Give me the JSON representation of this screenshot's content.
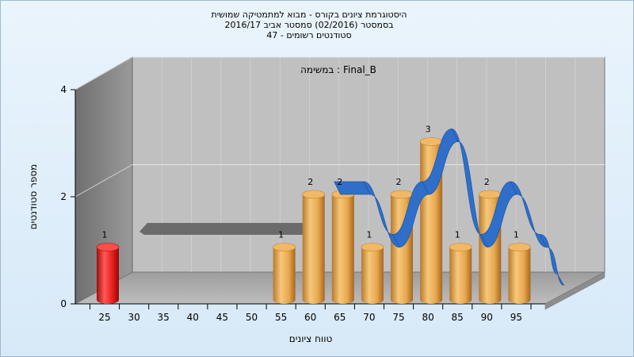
{
  "chart_data": {
    "type": "bar",
    "title_lines": [
      "היסטוגרמת ציונים בקורס - מבוא למתמטיקה שמושית",
      "בסמסטר (02/2016) סמסטר אביב 2016/17",
      "סטודנטים רשומים - 47"
    ],
    "subtitle": "במשימה : Final_B",
    "xlabel": "טווח ציונים",
    "ylabel": "מספר סטודנטים",
    "ylim": [
      0,
      4
    ],
    "y_ticks": [
      "0",
      "2",
      "4"
    ],
    "categories": [
      "25",
      "30",
      "35",
      "40",
      "45",
      "50",
      "55",
      "60",
      "65",
      "70",
      "75",
      "80",
      "85",
      "90",
      "95"
    ],
    "values": [
      1,
      0,
      0,
      0,
      0,
      0,
      1,
      2,
      2,
      1,
      2,
      3,
      1,
      2,
      1
    ],
    "bar_colors": {
      "first": "#e8201e",
      "rest": "#e7a94f"
    },
    "series_line_color": "#2f6fc9"
  }
}
